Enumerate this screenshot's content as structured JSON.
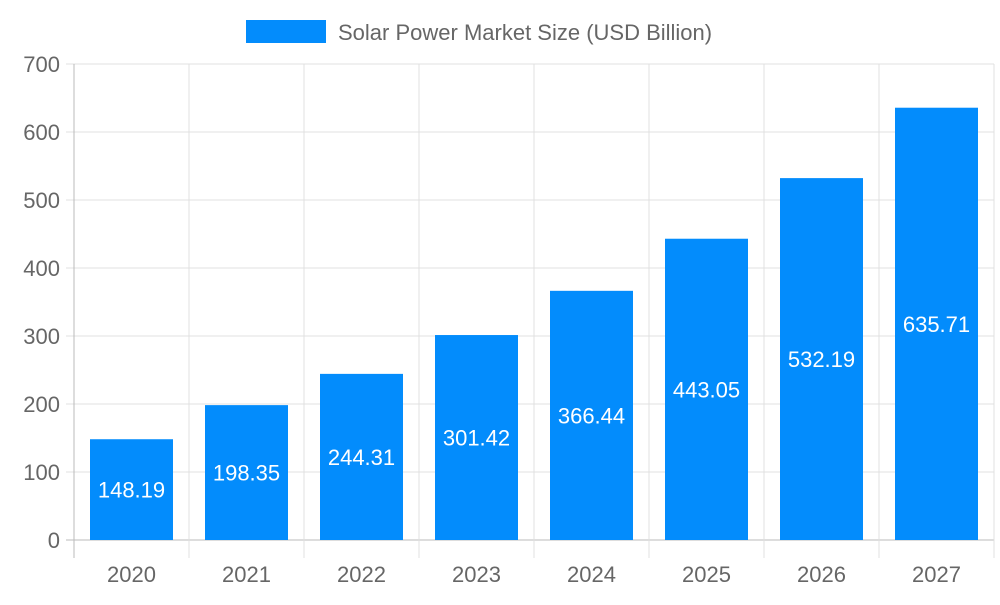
{
  "chart_data": {
    "type": "bar",
    "categories": [
      "2020",
      "2021",
      "2022",
      "2023",
      "2024",
      "2025",
      "2026",
      "2027"
    ],
    "series": [
      {
        "name": "Solar Power Market Size (USD Billion)",
        "values": [
          148.19,
          198.35,
          244.31,
          301.42,
          366.44,
          443.05,
          532.19,
          635.71
        ]
      }
    ],
    "data_labels": [
      "148.19",
      "198.35",
      "244.31",
      "301.42",
      "366.44",
      "443.05",
      "532.19",
      "635.71"
    ],
    "ylim": [
      0,
      700
    ],
    "yticks": [
      0,
      100,
      200,
      300,
      400,
      500,
      600,
      700
    ],
    "grid": true,
    "legend": "top-center",
    "colors": {
      "bar": "#038cfc",
      "text": "#666666",
      "grid": "#e0e0e0",
      "label": "#ffffff"
    }
  }
}
